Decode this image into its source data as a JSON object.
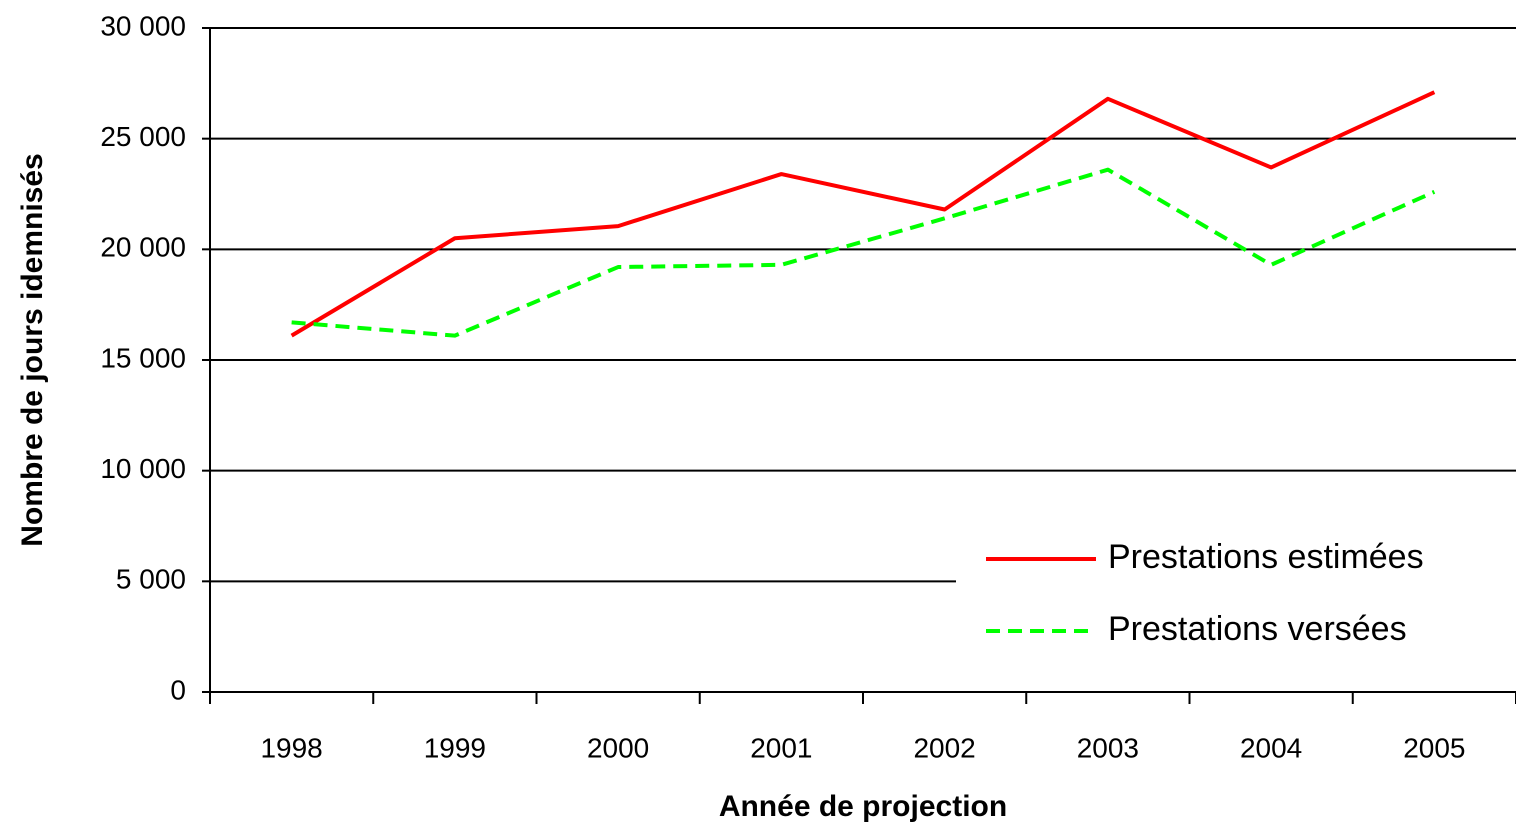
{
  "chart_data": {
    "type": "line",
    "y_label": "Nombre de jours idemnisés",
    "x_label": "Année de projection",
    "categories": [
      "1998",
      "1999",
      "2000",
      "2001",
      "2002",
      "2003",
      "2004",
      "2005"
    ],
    "series": [
      {
        "name": "Prestations estimées",
        "color": "#ff0000",
        "dash": "solid",
        "values": [
          16100,
          20500,
          21050,
          23400,
          21800,
          26800,
          23700,
          27100
        ]
      },
      {
        "name": "Prestations versées",
        "color": "#00ff00",
        "dash": "dashed",
        "values": [
          16700,
          16100,
          19200,
          19300,
          21400,
          23600,
          19300,
          22600
        ]
      }
    ],
    "ylim": [
      0,
      30000
    ],
    "yticks": [
      0,
      {
        "value": 5000,
        "label": "5 000"
      },
      {
        "value": 10000,
        "label": "10 000"
      },
      {
        "value": 15000,
        "label": "15 000"
      },
      {
        "value": 20000,
        "label": "20 000"
      },
      {
        "value": 25000,
        "label": "25 000"
      },
      {
        "value": 30000,
        "label": "30 000"
      }
    ],
    "grid": true,
    "legend": "lower right"
  }
}
